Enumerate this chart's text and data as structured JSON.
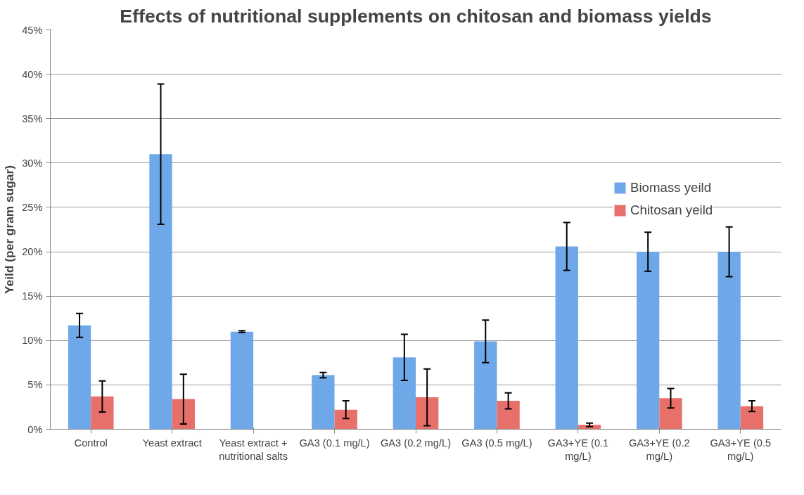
{
  "chart_data": {
    "type": "bar",
    "title": "Effects of nutritional supplements on chitosan and biomass yields",
    "ylabel": "Yeild (per gram sugar)",
    "categories": [
      "Control",
      "Yeast extract",
      "Yeast extract + nutritional salts",
      "GA3 (0.1 mg/L)",
      "GA3 (0.2 mg/L)",
      "GA3 (0.5 mg/L)",
      "GA3+YE (0.1 mg/L)",
      "GA3+YE (0.2 mg/L)",
      "GA3+YE (0.5 mg/L)"
    ],
    "series": [
      {
        "name": "Biomass yeild",
        "color": "#6fa8e8",
        "values": [
          11.7,
          31.0,
          11.0,
          6.1,
          8.1,
          9.9,
          20.6,
          20.0,
          20.0
        ],
        "errors": [
          1.35,
          7.9,
          0.1,
          0.3,
          2.6,
          2.4,
          2.7,
          2.2,
          2.8
        ]
      },
      {
        "name": "Chitosan yeild",
        "color": "#e8706a",
        "values": [
          3.7,
          3.4,
          null,
          2.2,
          3.6,
          3.2,
          0.5,
          3.5,
          2.6
        ],
        "errors": [
          1.75,
          2.8,
          null,
          1.0,
          3.2,
          0.9,
          0.2,
          1.1,
          0.6
        ]
      }
    ],
    "ylim": [
      0,
      45
    ],
    "yticks": [
      {
        "value": 0,
        "label": "0%"
      },
      {
        "value": 5,
        "label": "5%"
      },
      {
        "value": 10,
        "label": "10%"
      },
      {
        "value": 15,
        "label": "15%"
      },
      {
        "value": 20,
        "label": "20%"
      },
      {
        "value": 25,
        "label": "25%"
      },
      {
        "value": 30,
        "label": "30%"
      },
      {
        "value": 35,
        "label": "35%"
      },
      {
        "value": 40,
        "label": "40%"
      },
      {
        "value": 45,
        "label": "45%"
      }
    ],
    "grid": "y",
    "legend": "right"
  }
}
